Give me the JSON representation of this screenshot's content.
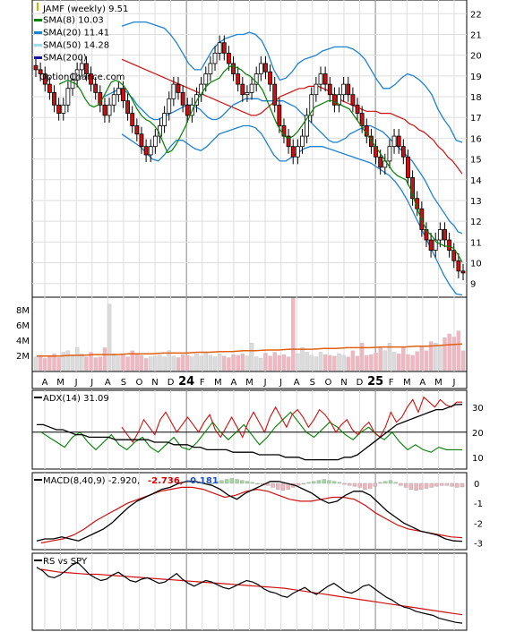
{
  "chart_data": {
    "type": "line",
    "x_labels": [
      "A",
      "M",
      "J",
      "J",
      "A",
      "S",
      "O",
      "N",
      "D",
      "24",
      "F",
      "M",
      "A",
      "M",
      "J",
      "J",
      "A",
      "S",
      "O",
      "N",
      "D",
      "25",
      "F",
      "M",
      "A",
      "M",
      "J"
    ],
    "price_panel": {
      "title": "JAMF (weekly) 9.51",
      "watermark": "OptionChance.com",
      "y_ticks": [
        9,
        10,
        11,
        12,
        13,
        14,
        15,
        16,
        17,
        18,
        19,
        20,
        21,
        22
      ],
      "ylim": [
        8.6,
        22.4
      ],
      "legend": [
        {
          "label": "SMA(8) 10.03",
          "color": "#008000"
        },
        {
          "label": "SMA(20) 11.41",
          "color": "#1e82d2"
        },
        {
          "label": "SMA(50) 14.28",
          "color": "#a0dcf0"
        },
        {
          "label": "SMA(200)",
          "color": "#1414a0"
        }
      ],
      "close": [
        19.3,
        19.1,
        18.6,
        18.2,
        17.6,
        17.2,
        17.6,
        18.4,
        18.8,
        19.3,
        19.6,
        19.1,
        18.6,
        18.2,
        17.6,
        17.1,
        17.6,
        18.1,
        18.4,
        17.8,
        17.2,
        16.6,
        16.2,
        15.6,
        15.2,
        15.6,
        16.1,
        16.6,
        17.2,
        17.9,
        18.6,
        18.2,
        17.6,
        17.1,
        17.6,
        18.1,
        18.6,
        19.1,
        19.6,
        20.1,
        20.6,
        20.1,
        19.6,
        19.1,
        18.6,
        18.1,
        18.2,
        18.6,
        19.1,
        19.6,
        19.2,
        18.6,
        17.6,
        16.6,
        16.1,
        15.6,
        15.1,
        15.6,
        16.1,
        17.1,
        18.1,
        18.6,
        19.1,
        18.6,
        18.1,
        17.6,
        18.1,
        18.6,
        18.1,
        17.6,
        17.2,
        16.6,
        16.1,
        15.6,
        15.1,
        14.6,
        14.9,
        15.6,
        16.1,
        15.6,
        15.1,
        14.1,
        13.1,
        12.6,
        11.6,
        11.1,
        10.6,
        11.1,
        11.6,
        11.1,
        10.6,
        10.1,
        9.6,
        9.51
      ],
      "sma8": [
        18.6,
        18.7,
        18.8,
        18.7,
        18.6,
        18.3,
        17.9,
        17.6,
        17.5,
        17.6,
        17.9,
        18.3,
        18.7,
        18.8,
        18.7,
        18.5,
        18.2,
        17.8,
        17.4,
        17.1,
        16.9,
        16.8,
        16.6,
        16.3,
        15.8,
        15.3,
        15.4,
        15.7,
        16.1,
        16.5,
        17.0,
        17.5,
        17.9,
        18.2,
        18.5,
        18.7,
        18.8,
        18.9,
        19.2,
        19.4,
        19.5,
        19.4,
        19.3,
        19.1,
        19.0,
        18.8,
        18.6,
        18.3,
        17.8,
        17.3,
        16.8,
        16.4,
        16.1,
        16.0,
        16.1,
        16.3,
        16.6,
        16.9,
        17.2,
        17.5,
        17.6,
        17.7,
        17.8,
        17.8,
        17.7,
        17.6,
        17.5,
        17.4,
        17.1,
        16.8,
        16.5,
        16.2,
        15.9,
        15.6,
        15.3,
        15.0,
        14.7,
        14.4,
        14.2,
        14.1,
        14.0,
        13.6,
        13.0,
        12.4,
        11.9,
        11.5,
        11.3,
        11.0,
        10.9,
        10.8,
        10.8,
        10.7,
        10.4,
        10.03
      ],
      "sma20": [
        18.0,
        18.1,
        18.2,
        18.3,
        18.4,
        18.3,
        18.1,
        17.9,
        17.6,
        17.4,
        17.2,
        17.0,
        16.9,
        16.9,
        17.0,
        17.1,
        17.2,
        17.3,
        17.4,
        17.5,
        17.6,
        17.6,
        17.5,
        17.4,
        17.2,
        17.0,
        16.9,
        16.9,
        17.0,
        17.2,
        17.4,
        17.6,
        17.7,
        17.8,
        17.9,
        17.9,
        17.9,
        17.9,
        17.8,
        17.8,
        17.8,
        17.8,
        17.8,
        17.8,
        17.7,
        17.6,
        17.5,
        17.3,
        17.1,
        16.9,
        16.7,
        16.5,
        16.3,
        16.1,
        15.9,
        15.8,
        15.8,
        15.9,
        16.0,
        16.2,
        16.3,
        16.4,
        16.5,
        16.6,
        16.6,
        16.5,
        16.4,
        16.3,
        16.1,
        15.9,
        15.7,
        15.5,
        15.3,
        15.1,
        14.9,
        14.6,
        14.3,
        14.0,
        13.6,
        13.2,
        12.9,
        12.6,
        12.3,
        12.0,
        11.8,
        11.5,
        11.41
      ],
      "sma50": [
        19.8,
        19.7,
        19.6,
        19.5,
        19.4,
        19.3,
        19.2,
        19.1,
        19.0,
        18.9,
        18.8,
        18.7,
        18.6,
        18.5,
        18.4,
        18.3,
        18.2,
        18.1,
        18.0,
        17.9,
        17.8,
        17.7,
        17.6,
        17.5,
        17.4,
        17.3,
        17.2,
        17.1,
        17.1,
        17.2,
        17.4,
        17.6,
        17.8,
        18.0,
        18.1,
        18.2,
        18.3,
        18.4,
        18.4,
        18.5,
        18.5,
        18.5,
        18.4,
        18.3,
        18.1,
        18.0,
        17.8,
        17.7,
        17.6,
        17.5,
        17.4,
        17.3,
        17.3,
        17.3,
        17.2,
        17.2,
        17.2,
        17.1,
        17.0,
        16.9,
        16.7,
        16.6,
        16.4,
        16.3,
        16.1,
        15.9,
        15.6,
        15.4,
        15.1,
        14.9,
        14.6,
        14.28
      ],
      "bollinger_upper": [
        21.4,
        21.5,
        21.6,
        21.6,
        21.6,
        21.5,
        21.4,
        21.3,
        21.0,
        20.6,
        20.1,
        19.6,
        19.3,
        19.3,
        19.8,
        20.3,
        20.6,
        20.8,
        20.9,
        21.0,
        21.0,
        21.1,
        21.0,
        20.7,
        20.1,
        19.3,
        18.8,
        18.9,
        19.2,
        19.6,
        19.8,
        19.9,
        20.0,
        20.2,
        20.3,
        20.4,
        20.4,
        20.4,
        20.3,
        20.1,
        19.8,
        19.3,
        18.8,
        18.4,
        18.4,
        18.6,
        18.9,
        19.1,
        19.0,
        18.8,
        18.5,
        18.1,
        17.4,
        16.9,
        16.5,
        15.9,
        15.8
      ],
      "bollinger_lower": [
        16.2,
        16.0,
        15.8,
        15.6,
        15.3,
        15.0,
        14.9,
        15.2,
        15.6,
        15.9,
        15.9,
        15.7,
        15.5,
        15.4,
        15.6,
        15.9,
        16.2,
        16.3,
        16.4,
        16.5,
        16.6,
        16.6,
        16.5,
        16.2,
        15.7,
        15.2,
        14.9,
        14.9,
        15.1,
        15.3,
        15.5,
        15.6,
        15.6,
        15.6,
        15.5,
        15.4,
        15.3,
        15.2,
        15.1,
        15.0,
        14.9,
        14.8,
        14.6,
        14.4,
        14.2,
        13.9,
        13.5,
        13.0,
        12.4,
        11.8,
        11.2,
        10.6,
        10.0,
        9.4,
        8.9,
        8.5,
        8.45
      ]
    },
    "volume_panel": {
      "y_ticks": [
        "2M",
        "4M",
        "6M",
        "8M"
      ],
      "ylim": [
        0,
        9.5
      ],
      "volume_m": [
        1.8,
        2.0,
        1.6,
        1.9,
        2.2,
        1.7,
        2.4,
        2.6,
        1.9,
        3.0,
        2.2,
        1.8,
        2.4,
        1.7,
        1.8,
        3.0,
        8.7,
        2.2,
        1.9,
        2.1,
        1.8,
        2.6,
        2.2,
        2.0,
        1.6,
        1.8,
        1.9,
        2.0,
        1.8,
        2.6,
        1.9,
        1.7,
        2.1,
        2.0,
        1.8,
        2.2,
        1.9,
        2.4,
        2.0,
        1.8,
        2.2,
        1.9,
        1.7,
        2.1,
        2.0,
        2.2,
        1.9,
        3.6,
        1.8,
        1.6,
        2.3,
        1.9,
        2.4,
        2.0,
        2.1,
        1.8,
        9.5,
        2.2,
        3.0,
        2.4,
        2.0,
        1.8,
        2.4,
        2.1,
        2.0,
        1.9,
        2.2,
        2.0,
        1.8,
        2.6,
        1.9,
        3.6,
        2.0,
        2.1,
        2.3,
        3.0,
        2.6,
        3.6,
        2.4,
        2.2,
        3.0,
        2.1,
        2.0,
        2.5,
        3.2,
        2.6,
        3.8,
        3.6,
        3.3,
        4.3,
        4.8,
        4.4,
        5.2,
        2.6
      ],
      "volume_sma": [
        1.9,
        1.9,
        1.9,
        2.0,
        2.0,
        2.1,
        2.1,
        2.1,
        2.2,
        2.2,
        2.2,
        2.3,
        2.3,
        2.3,
        2.4,
        2.4,
        2.5,
        2.5,
        2.6,
        2.6,
        2.7,
        2.7,
        2.8,
        2.8,
        2.8,
        2.9,
        2.9,
        3.0,
        3.0,
        3.0,
        3.1,
        3.1,
        3.1,
        3.2,
        3.2,
        3.3,
        3.4,
        3.5
      ]
    },
    "adx_panel": {
      "label": "ADX(14) 31.09",
      "y_ticks": [
        10,
        20,
        30
      ],
      "ylim": [
        6,
        36
      ],
      "adx": [
        23,
        23,
        22,
        21,
        21,
        20,
        19,
        19,
        18,
        18,
        18,
        18,
        17,
        17,
        17,
        17,
        17,
        17,
        16,
        16,
        16,
        15,
        15,
        15,
        14,
        14,
        13,
        13,
        13,
        13,
        12,
        12,
        12,
        12,
        11,
        11,
        11,
        11,
        10,
        10,
        10,
        9,
        9,
        9,
        9,
        9,
        9,
        10,
        10,
        11,
        13,
        15,
        17,
        19,
        21,
        23,
        24,
        25,
        26,
        27,
        28,
        29,
        29,
        30,
        31,
        31.09
      ],
      "plus_di": [
        22,
        19,
        16,
        20,
        25,
        22,
        19,
        25,
        28,
        24,
        20,
        23,
        26,
        23,
        20,
        24,
        27,
        21,
        18,
        22,
        26,
        22,
        18,
        24,
        28,
        24,
        20,
        26,
        30,
        26,
        22,
        27,
        29,
        26,
        22,
        25,
        29,
        27,
        24,
        20,
        23,
        25,
        21,
        19,
        22,
        24,
        20,
        18,
        22,
        28,
        24,
        26,
        30,
        33,
        28,
        34,
        32,
        30,
        33,
        31,
        30,
        32,
        32
      ],
      "minus_di": [
        20,
        18,
        16,
        14,
        18,
        20,
        16,
        13,
        16,
        19,
        15,
        13,
        16,
        18,
        14,
        12,
        15,
        18,
        14,
        13,
        16,
        20,
        24,
        20,
        17,
        20,
        23,
        19,
        15,
        18,
        22,
        25,
        28,
        24,
        20,
        18,
        21,
        24,
        22,
        19,
        17,
        20,
        22,
        19,
        17,
        20,
        16,
        13,
        15,
        13,
        12,
        14,
        13,
        13,
        13
      ]
    },
    "macd_panel": {
      "label": "MACD(8,40,9) -2.920,",
      "signal_label": "-2.736,",
      "hist_label": "-0.181",
      "y_ticks": [
        0,
        -1,
        -2,
        -3
      ],
      "ylim": [
        -3.25,
        0.45
      ],
      "macd": [
        -2.9,
        -2.8,
        -2.8,
        -2.7,
        -2.8,
        -2.9,
        -2.7,
        -2.5,
        -2.3,
        -2.0,
        -1.6,
        -1.2,
        -0.9,
        -0.7,
        -0.5,
        -0.3,
        -0.2,
        0.0,
        0.1,
        0.1,
        0.0,
        -0.1,
        -0.3,
        -0.6,
        -0.8,
        -0.5,
        -0.3,
        -0.1,
        0.1,
        0.1,
        0.0,
        -0.1,
        -0.3,
        -0.5,
        -0.8,
        -1.0,
        -0.9,
        -0.6,
        -0.4,
        -0.4,
        -0.6,
        -1.0,
        -1.4,
        -1.7,
        -2.0,
        -2.2,
        -2.4,
        -2.5,
        -2.6,
        -2.8,
        -2.9,
        -2.92
      ],
      "signal": [
        -3.0,
        -2.9,
        -2.8,
        -2.6,
        -2.3,
        -1.9,
        -1.6,
        -1.3,
        -1.0,
        -0.8,
        -0.6,
        -0.4,
        -0.3,
        -0.2,
        -0.2,
        -0.3,
        -0.5,
        -0.7,
        -0.6,
        -0.4,
        -0.3,
        -0.4,
        -0.6,
        -0.8,
        -0.9,
        -0.9,
        -0.8,
        -0.7,
        -0.7,
        -0.8,
        -1.1,
        -1.5,
        -1.8,
        -2.1,
        -2.3,
        -2.4,
        -2.5,
        -2.6,
        -2.7,
        -2.736
      ],
      "hist": [
        0.0,
        0.1,
        0.15,
        0.2,
        0.25,
        0.2,
        0.15,
        0.1,
        0.05,
        0.0,
        -0.05,
        -0.1,
        -0.2,
        -0.3,
        -0.35,
        -0.3,
        -0.2,
        -0.1,
        0.0,
        0.05,
        0.1,
        0.15,
        0.2,
        0.15,
        0.1,
        0.05,
        -0.05,
        -0.1,
        -0.15,
        -0.2,
        -0.3,
        -0.25,
        -0.15,
        0.05,
        0.1,
        0.15,
        0.05,
        -0.1,
        -0.2,
        -0.3,
        -0.35,
        -0.3,
        -0.25,
        -0.2,
        -0.15,
        -0.1,
        -0.1,
        -0.15,
        -0.2,
        -0.18
      ]
    },
    "rs_panel": {
      "label": "RS vs SPY",
      "rs": [
        85,
        80,
        72,
        70,
        74,
        80,
        88,
        92,
        84,
        75,
        70,
        66,
        68,
        74,
        78,
        72,
        66,
        64,
        68,
        70,
        66,
        62,
        64,
        70,
        76,
        68,
        62,
        58,
        62,
        66,
        64,
        60,
        56,
        54,
        58,
        62,
        66,
        64,
        60,
        54,
        50,
        48,
        44,
        42,
        48,
        52,
        56,
        50,
        46,
        52,
        58,
        62,
        56,
        50,
        48,
        52,
        58,
        60,
        54,
        48,
        42,
        38,
        32,
        28,
        26,
        22,
        20,
        18,
        16,
        12,
        10,
        8,
        6,
        5
      ],
      "rs_sma": [
        82,
        80,
        78,
        77,
        76,
        75,
        75,
        74,
        73,
        72,
        71,
        70,
        69,
        68,
        67,
        66,
        65,
        64,
        63,
        62,
        61,
        60,
        59,
        58,
        57,
        56,
        55,
        53,
        51,
        49,
        47,
        45,
        43,
        41,
        39,
        37,
        35,
        33,
        31,
        29,
        27,
        25,
        23,
        21,
        19,
        17
      ]
    }
  }
}
